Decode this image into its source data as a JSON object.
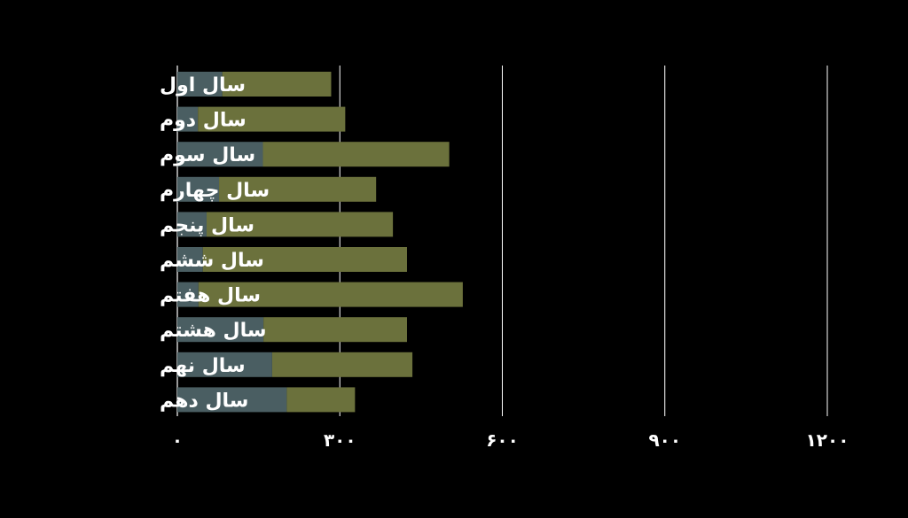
{
  "chart_data": {
    "type": "bar",
    "orientation": "horizontal",
    "stacked": true,
    "categories": [
      "سال اول",
      "سال دوم",
      "سال سوم",
      "سال چهارم",
      "سال پنجم",
      "سال ششم",
      "سال هفتم",
      "سال هشتم",
      "سال نهم",
      "سال دهم"
    ],
    "series": [
      {
        "values": [
          83,
          38,
          158,
          77,
          54,
          47,
          39,
          159,
          175,
          202
        ],
        "color": "#4a5e62"
      },
      {
        "values": [
          201,
          272,
          344,
          290,
          344,
          377,
          488,
          265,
          259,
          126
        ],
        "color": "#6b713c"
      }
    ],
    "xlim": [
      0,
      1200
    ],
    "xticks": [
      0,
      300,
      600,
      900,
      1200
    ],
    "xtick_labels": [
      "۰",
      "۳۰۰",
      "۶۰۰",
      "۹۰۰",
      "۱۲۰۰"
    ],
    "grid": true,
    "grid_axis": "x",
    "grid_color": "#ffffff",
    "background": "#000000",
    "text_color": "#ffffff",
    "legend": "none"
  }
}
